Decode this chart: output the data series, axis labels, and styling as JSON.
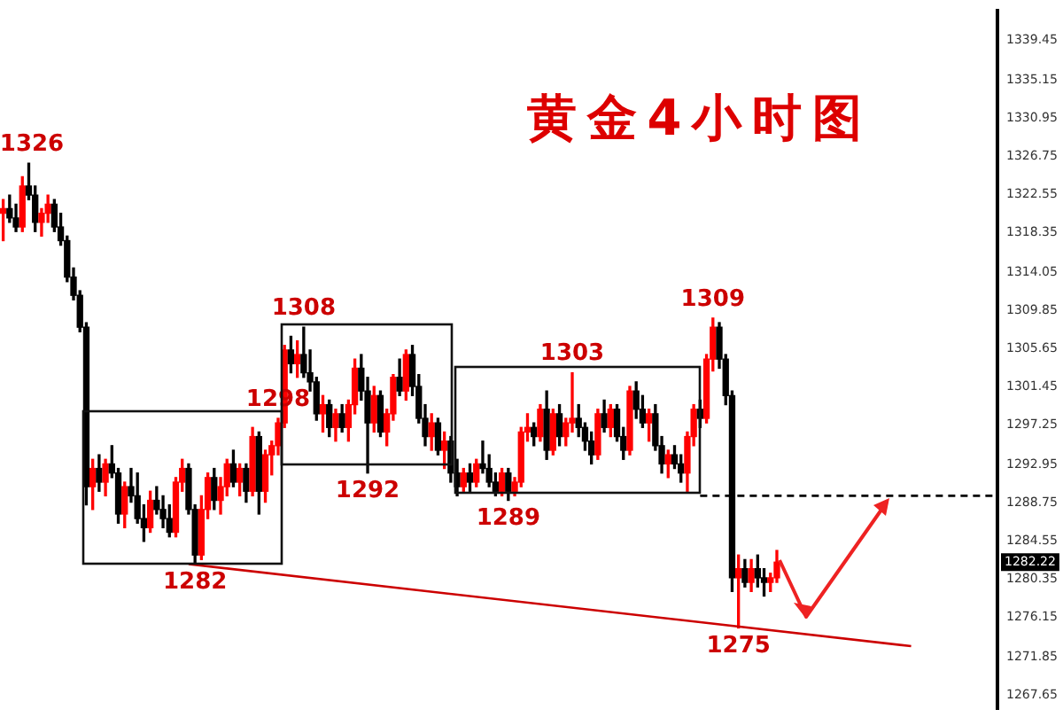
{
  "chart_data": {
    "type": "candlestick",
    "title": "黄金4小时图",
    "categories": [
      null,
      null,
      null,
      null,
      null,
      null,
      null,
      null,
      null,
      null,
      null,
      null,
      null,
      null,
      null,
      null,
      null,
      null,
      null,
      null,
      null,
      null,
      null,
      null,
      null,
      null,
      null,
      null,
      null,
      null,
      null,
      null,
      null,
      null,
      null,
      null,
      null,
      null,
      null,
      null,
      null,
      null,
      null,
      null,
      null,
      null,
      null,
      null,
      null,
      null,
      null,
      null,
      null,
      null,
      null,
      null,
      null,
      null,
      null,
      null,
      null,
      null,
      null,
      null,
      null,
      null,
      null,
      null,
      null,
      null,
      null,
      null,
      null,
      null,
      null,
      null,
      null,
      null,
      null,
      null,
      null,
      null,
      null,
      null,
      null,
      null,
      null,
      null,
      null,
      null,
      null,
      null,
      null,
      null,
      null,
      null,
      null,
      null,
      null,
      null,
      null,
      null,
      null,
      null,
      null,
      null,
      null,
      null,
      null,
      null,
      null,
      null,
      null,
      null,
      null,
      null,
      null,
      null,
      null,
      null,
      null,
      null,
      null,
      null,
      null,
      null,
      null,
      null,
      null,
      null,
      null,
      null,
      null,
      null,
      null,
      null,
      null,
      null,
      null,
      null,
      null,
      null,
      null,
      null,
      null,
      null,
      null,
      null,
      null,
      null,
      null,
      null,
      null,
      null,
      null,
      null
    ],
    "ohlc": [
      [
        1320.5,
        1322.0,
        1317.5,
        1321.0
      ],
      [
        1321.0,
        1322.5,
        1319.5,
        1320.0
      ],
      [
        1320.0,
        1321.5,
        1318.5,
        1319.0
      ],
      [
        1319.0,
        1324.5,
        1318.5,
        1323.5
      ],
      [
        1323.5,
        1326.0,
        1322.0,
        1322.5
      ],
      [
        1322.5,
        1323.5,
        1318.5,
        1319.5
      ],
      [
        1319.5,
        1321.0,
        1318.0,
        1320.5
      ],
      [
        1320.5,
        1322.5,
        1319.5,
        1321.5
      ],
      [
        1321.5,
        1322.0,
        1318.5,
        1319.0
      ],
      [
        1319.0,
        1320.5,
        1317.0,
        1317.5
      ],
      [
        1317.5,
        1318.0,
        1313.0,
        1313.5
      ],
      [
        1313.5,
        1314.5,
        1311.0,
        1311.5
      ],
      [
        1311.5,
        1312.0,
        1307.5,
        1308.0
      ],
      [
        1308.0,
        1308.5,
        1288.5,
        1290.5
      ],
      [
        1290.5,
        1293.5,
        1288.0,
        1292.5
      ],
      [
        1292.5,
        1294.0,
        1290.0,
        1291.0
      ],
      [
        1291.0,
        1293.5,
        1289.5,
        1293.0
      ],
      [
        1293.0,
        1295.0,
        1291.5,
        1292.0
      ],
      [
        1292.0,
        1292.5,
        1286.5,
        1287.5
      ],
      [
        1287.5,
        1291.0,
        1286.0,
        1290.5
      ],
      [
        1290.5,
        1292.5,
        1288.8,
        1289.5
      ],
      [
        1289.5,
        1292.0,
        1286.5,
        1287.0
      ],
      [
        1287.0,
        1288.5,
        1284.5,
        1286.0
      ],
      [
        1286.0,
        1290.0,
        1285.5,
        1289.0
      ],
      [
        1289.0,
        1290.5,
        1287.5,
        1288.0
      ],
      [
        1288.0,
        1289.5,
        1286.0,
        1287.0
      ],
      [
        1287.0,
        1288.5,
        1285.0,
        1285.5
      ],
      [
        1285.5,
        1291.5,
        1285.0,
        1291.0
      ],
      [
        1291.0,
        1293.5,
        1290.0,
        1292.5
      ],
      [
        1292.5,
        1293.0,
        1287.5,
        1288.0
      ],
      [
        1288.0,
        1288.5,
        1282.0,
        1283.0
      ],
      [
        1283.0,
        1289.5,
        1282.5,
        1288.0
      ],
      [
        1288.0,
        1292.0,
        1287.0,
        1291.5
      ],
      [
        1291.5,
        1292.5,
        1288.0,
        1289.0
      ],
      [
        1289.0,
        1291.5,
        1287.5,
        1290.5
      ],
      [
        1290.5,
        1293.5,
        1289.5,
        1293.0
      ],
      [
        1293.0,
        1294.5,
        1290.5,
        1291.0
      ],
      [
        1291.0,
        1293.0,
        1289.5,
        1292.5
      ],
      [
        1292.5,
        1293.0,
        1288.8,
        1290.0
      ],
      [
        1290.0,
        1297.0,
        1289.5,
        1296.0
      ],
      [
        1296.0,
        1296.5,
        1287.5,
        1290.0
      ],
      [
        1290.0,
        1294.5,
        1288.8,
        1294.0
      ],
      [
        1294.0,
        1295.5,
        1291.8,
        1295.0
      ],
      [
        1295.0,
        1298.0,
        1294.0,
        1297.5
      ],
      [
        1297.5,
        1306.0,
        1297.0,
        1305.5
      ],
      [
        1305.5,
        1307.0,
        1303.0,
        1304.0
      ],
      [
        1304.0,
        1306.5,
        1302.5,
        1305.0
      ],
      [
        1305.0,
        1308.0,
        1302.5,
        1303.0
      ],
      [
        1303.0,
        1305.5,
        1301.0,
        1302.0
      ],
      [
        1302.0,
        1302.5,
        1297.8,
        1298.5
      ],
      [
        1298.5,
        1300.5,
        1296.5,
        1299.5
      ],
      [
        1299.5,
        1300.0,
        1296.0,
        1297.0
      ],
      [
        1297.0,
        1299.0,
        1295.5,
        1298.5
      ],
      [
        1298.5,
        1299.5,
        1296.5,
        1297.0
      ],
      [
        1297.0,
        1300.0,
        1295.5,
        1299.5
      ],
      [
        1299.5,
        1304.5,
        1298.5,
        1303.5
      ],
      [
        1303.5,
        1305.0,
        1300.0,
        1301.0
      ],
      [
        1301.0,
        1302.5,
        1292.0,
        1297.5
      ],
      [
        1297.5,
        1301.5,
        1296.5,
        1300.5
      ],
      [
        1300.5,
        1301.0,
        1296.0,
        1296.5
      ],
      [
        1296.5,
        1299.0,
        1295.0,
        1298.5
      ],
      [
        1298.5,
        1302.8,
        1297.8,
        1302.5
      ],
      [
        1302.5,
        1304.5,
        1300.5,
        1301.0
      ],
      [
        1301.0,
        1305.5,
        1300.0,
        1305.0
      ],
      [
        1305.0,
        1306.0,
        1300.5,
        1301.5
      ],
      [
        1301.5,
        1302.8,
        1297.5,
        1298.0
      ],
      [
        1298.0,
        1299.5,
        1295.0,
        1296.0
      ],
      [
        1296.0,
        1298.5,
        1294.5,
        1297.5
      ],
      [
        1297.5,
        1298.0,
        1294.0,
        1294.5
      ],
      [
        1294.5,
        1296.5,
        1292.5,
        1295.5
      ],
      [
        1295.5,
        1296.0,
        1291.0,
        1292.0
      ],
      [
        1292.0,
        1293.5,
        1289.5,
        1290.5
      ],
      [
        1290.5,
        1292.5,
        1290.0,
        1292.0
      ],
      [
        1292.0,
        1293.0,
        1290.0,
        1291.0
      ],
      [
        1291.0,
        1293.5,
        1290.5,
        1293.0
      ],
      [
        1293.0,
        1295.5,
        1292.0,
        1292.5
      ],
      [
        1292.5,
        1294.0,
        1290.5,
        1291.0
      ],
      [
        1291.0,
        1292.0,
        1289.5,
        1290.0
      ],
      [
        1290.0,
        1292.5,
        1289.5,
        1292.0
      ],
      [
        1292.0,
        1292.5,
        1289.0,
        1290.0
      ],
      [
        1290.0,
        1291.5,
        1289.5,
        1291.0
      ],
      [
        1291.0,
        1297.0,
        1290.5,
        1296.5
      ],
      [
        1296.5,
        1298.5,
        1295.5,
        1297.0
      ],
      [
        1297.0,
        1297.5,
        1295.0,
        1296.0
      ],
      [
        1296.0,
        1299.5,
        1295.5,
        1299.0
      ],
      [
        1299.0,
        1301.0,
        1293.5,
        1294.5
      ],
      [
        1294.5,
        1299.0,
        1294.0,
        1298.5
      ],
      [
        1298.5,
        1299.5,
        1295.0,
        1296.0
      ],
      [
        1296.0,
        1298.0,
        1295.0,
        1297.5
      ],
      [
        1297.5,
        1303.0,
        1296.5,
        1298.0
      ],
      [
        1298.0,
        1299.5,
        1296.0,
        1297.0
      ],
      [
        1297.0,
        1297.5,
        1294.5,
        1295.5
      ],
      [
        1295.5,
        1296.5,
        1293.0,
        1294.0
      ],
      [
        1294.0,
        1299.0,
        1293.5,
        1298.5
      ],
      [
        1298.5,
        1300.0,
        1296.5,
        1297.0
      ],
      [
        1297.0,
        1299.5,
        1296.0,
        1299.0
      ],
      [
        1299.0,
        1299.5,
        1295.5,
        1296.0
      ],
      [
        1296.0,
        1297.0,
        1293.5,
        1294.5
      ],
      [
        1294.5,
        1301.5,
        1294.0,
        1301.0
      ],
      [
        1301.0,
        1302.0,
        1298.0,
        1299.0
      ],
      [
        1299.0,
        1300.5,
        1297.0,
        1297.5
      ],
      [
        1297.5,
        1299.0,
        1295.5,
        1298.5
      ],
      [
        1298.5,
        1299.5,
        1294.5,
        1295.0
      ],
      [
        1295.0,
        1296.0,
        1292.0,
        1293.0
      ],
      [
        1293.0,
        1294.5,
        1291.5,
        1294.0
      ],
      [
        1294.0,
        1295.0,
        1292.5,
        1293.0
      ],
      [
        1293.0,
        1294.0,
        1291.0,
        1292.0
      ],
      [
        1292.0,
        1296.5,
        1290.0,
        1296.0
      ],
      [
        1296.0,
        1299.5,
        1295.0,
        1299.0
      ],
      [
        1299.0,
        1300.0,
        1297.0,
        1298.0
      ],
      [
        1298.0,
        1305.0,
        1297.5,
        1304.5
      ],
      [
        1304.5,
        1309.0,
        1303.2,
        1308.0
      ],
      [
        1308.0,
        1308.5,
        1303.5,
        1304.5
      ],
      [
        1304.5,
        1305.0,
        1299.5,
        1300.5
      ],
      [
        1300.5,
        1301.0,
        1279.0,
        1280.5
      ],
      [
        1280.5,
        1283.0,
        1275.0,
        1281.5
      ],
      [
        1281.5,
        1282.5,
        1279.5,
        1280.0
      ],
      [
        1280.0,
        1282.5,
        1279.0,
        1281.5
      ],
      [
        1281.5,
        1283.0,
        1279.5,
        1280.5
      ],
      [
        1280.5,
        1281.5,
        1278.5,
        1280.0
      ],
      [
        1280.0,
        1281.0,
        1279.0,
        1280.5
      ],
      [
        1280.5,
        1283.5,
        1280.0,
        1282.22
      ],
      null,
      null,
      null,
      null,
      null,
      null,
      null,
      null,
      null,
      null,
      null,
      null,
      null,
      null,
      null,
      null,
      null,
      null,
      null,
      null,
      null,
      null,
      null,
      null,
      null,
      null,
      null,
      null,
      null,
      null,
      null,
      null,
      null,
      null
    ],
    "colors": [
      "#ff0000",
      "#000000",
      "#000000",
      "#ff0000",
      "#000000",
      "#000000",
      "#ff0000",
      "#ff0000",
      "#000000",
      "#000000",
      "#000000",
      "#000000",
      "#000000",
      "#000000",
      "#ff0000",
      "#000000",
      "#ff0000",
      "#000000",
      "#000000",
      "#ff0000",
      "#000000",
      "#000000",
      "#000000",
      "#ff0000",
      "#000000",
      "#000000",
      "#000000",
      "#ff0000",
      "#ff0000",
      "#000000",
      "#000000",
      "#ff0000",
      "#ff0000",
      "#000000",
      "#ff0000",
      "#ff0000",
      "#000000",
      "#ff0000",
      "#000000",
      "#ff0000",
      "#000000",
      "#ff0000",
      "#ff0000",
      "#ff0000",
      "#ff0000",
      "#000000",
      "#ff0000",
      "#000000",
      "#000000",
      "#000000",
      "#ff0000",
      "#000000",
      "#ff0000",
      "#000000",
      "#ff0000",
      "#ff0000",
      "#000000",
      "#000000",
      "#ff0000",
      "#000000",
      "#ff0000",
      "#ff0000",
      "#000000",
      "#ff0000",
      "#000000",
      "#000000",
      "#000000",
      "#ff0000",
      "#000000",
      "#ff0000",
      "#000000",
      "#000000",
      "#ff0000",
      "#000000",
      "#ff0000",
      "#000000",
      "#000000",
      "#000000",
      "#ff0000",
      "#000000",
      "#ff0000",
      "#ff0000",
      "#ff0000",
      "#000000",
      "#ff0000",
      "#000000",
      "#ff0000",
      "#000000",
      "#ff0000",
      "#ff0000",
      "#000000",
      "#000000",
      "#000000",
      "#ff0000",
      "#000000",
      "#ff0000",
      "#000000",
      "#000000",
      "#ff0000",
      "#000000",
      "#000000",
      "#ff0000",
      "#000000",
      "#000000",
      "#ff0000",
      "#000000",
      "#000000",
      "#ff0000",
      "#ff0000",
      "#000000",
      "#ff0000",
      "#ff0000",
      "#000000",
      "#000000",
      "#000000",
      "#ff0000",
      "#000000",
      "#ff0000",
      "#000000",
      "#000000",
      "#ff0000",
      "#ff0000",
      null,
      null,
      null,
      null,
      null,
      null,
      null,
      null,
      null,
      null,
      null,
      null,
      null,
      null,
      null,
      null,
      null,
      null,
      null,
      null,
      null,
      null,
      null,
      null,
      null,
      null,
      null,
      null,
      null,
      null,
      null,
      null,
      null,
      null
    ],
    "value_labels": [
      null,
      null,
      null,
      null,
      "1326",
      null,
      null,
      null,
      null,
      null,
      null,
      null,
      null,
      null,
      null,
      null,
      null,
      null,
      null,
      null,
      null,
      null,
      null,
      null,
      null,
      null,
      null,
      null,
      null,
      null,
      "1282",
      null,
      null,
      null,
      null,
      null,
      null,
      null,
      null,
      null,
      null,
      null,
      null,
      "1298",
      null,
      null,
      null,
      "1308",
      null,
      null,
      null,
      null,
      null,
      null,
      null,
      null,
      null,
      "1292",
      null,
      null,
      null,
      null,
      null,
      null,
      null,
      null,
      null,
      null,
      null,
      null,
      null,
      null,
      null,
      null,
      null,
      null,
      null,
      null,
      null,
      "1289",
      null,
      null,
      null,
      null,
      null,
      null,
      null,
      null,
      null,
      "1303",
      null,
      null,
      null,
      null,
      null,
      null,
      null,
      null,
      null,
      null,
      null,
      null,
      null,
      null,
      null,
      null,
      null,
      null,
      null,
      null,
      null,
      "1309",
      null,
      null,
      null,
      "1275",
      null,
      null,
      null,
      null,
      null,
      null,
      null,
      null,
      null,
      null,
      null,
      null,
      null,
      null,
      null,
      null,
      null,
      null,
      null,
      null,
      null,
      null,
      null,
      null,
      null,
      null,
      null,
      null,
      null,
      null,
      null,
      null,
      null,
      null,
      null,
      null,
      null,
      null,
      null,
      null
    ],
    "series": [
      {
        "type": "line",
        "color": "#cc0000",
        "values": [
          null,
          null,
          null,
          null,
          null,
          null,
          null,
          null,
          null,
          null,
          null,
          null,
          null,
          null,
          null,
          null,
          null,
          null,
          null,
          null,
          null,
          null,
          null,
          null,
          null,
          null,
          null,
          null,
          null,
          1282,
          null,
          null,
          null,
          null,
          null,
          null,
          null,
          null,
          null,
          null,
          null,
          null,
          null,
          null,
          null,
          null,
          null,
          null,
          null,
          null,
          null,
          null,
          null,
          null,
          null,
          null,
          null,
          null,
          null,
          null,
          null,
          null,
          null,
          null,
          null,
          null,
          null,
          null,
          null,
          null,
          null,
          null,
          null,
          null,
          null,
          null,
          null,
          null,
          null,
          null,
          null,
          null,
          null,
          null,
          null,
          null,
          null,
          null,
          null,
          null,
          null,
          null,
          null,
          null,
          null,
          null,
          null,
          null,
          null,
          null,
          null,
          null,
          null,
          null,
          null,
          null,
          null,
          null,
          null,
          null,
          null,
          null,
          null,
          null,
          null,
          null,
          null,
          null,
          null,
          null,
          null,
          null,
          null,
          null,
          null,
          null,
          null,
          null,
          null,
          null,
          null,
          null,
          null,
          null,
          null,
          null,
          null,
          null,
          null,
          null,
          null,
          null,
          1273,
          null,
          null,
          null,
          null,
          null,
          null,
          null,
          null,
          null,
          null,
          null,
          null,
          null
        ]
      },
      {
        "type": "line",
        "color": "#000000",
        "line_style": "dashed",
        "values": [
          null,
          null,
          null,
          null,
          null,
          null,
          null,
          null,
          null,
          null,
          null,
          null,
          null,
          null,
          null,
          null,
          null,
          null,
          null,
          null,
          null,
          null,
          null,
          null,
          null,
          null,
          null,
          null,
          null,
          null,
          null,
          null,
          null,
          null,
          null,
          null,
          null,
          null,
          null,
          null,
          null,
          null,
          null,
          null,
          null,
          null,
          null,
          null,
          null,
          null,
          null,
          null,
          null,
          null,
          null,
          null,
          null,
          null,
          null,
          null,
          null,
          null,
          null,
          null,
          null,
          null,
          null,
          null,
          null,
          null,
          null,
          null,
          null,
          null,
          null,
          null,
          null,
          null,
          null,
          null,
          null,
          null,
          null,
          null,
          null,
          null,
          null,
          null,
          null,
          null,
          null,
          null,
          null,
          null,
          null,
          null,
          null,
          null,
          null,
          null,
          null,
          null,
          null,
          null,
          null,
          null,
          null,
          null,
          null,
          1289.5,
          null,
          null,
          null,
          null,
          null,
          null,
          null,
          null,
          null,
          null,
          null,
          null,
          null,
          null,
          null,
          null,
          null,
          null,
          null,
          null,
          null,
          null,
          null,
          null,
          null,
          null,
          null,
          null,
          null,
          null,
          null,
          null,
          null,
          null,
          null,
          null,
          null,
          null,
          null,
          null,
          null,
          null,
          null,
          null,
          null,
          1289.5
        ]
      }
    ],
    "annotations": [
      {
        "text": "1282.22",
        "y": 1282.22
      }
    ],
    "ylim": [
      1266.1,
      1342.7
    ],
    "yticks": [
      1339.45,
      1335.15,
      1330.95,
      1326.75,
      1322.55,
      1318.35,
      1314.05,
      1309.85,
      1305.65,
      1301.45,
      1297.25,
      1292.95,
      1288.75,
      1284.55,
      1280.35,
      1276.15,
      1271.85,
      1267.65
    ],
    "tick_labels": "y",
    "grid": false,
    "legend": false
  }
}
